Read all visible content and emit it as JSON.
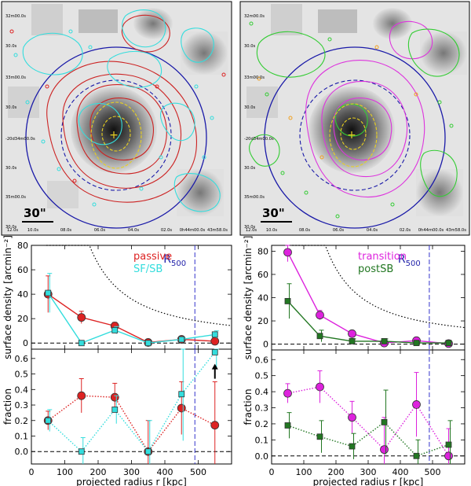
{
  "maps": {
    "left": {
      "dec_labels": [
        "32m00.0s",
        "30.0s",
        "33m00.0s",
        "30.0s",
        "-20d34m00.0s",
        "30.0s",
        "35m00.0s",
        "30.0s"
      ],
      "ra_labels": [
        "12.0s",
        "10.0s",
        "08.0s",
        "06.0s",
        "04.0s",
        "02.0s",
        "0h44m00.0s",
        "43m58.0s"
      ],
      "scalebar_label": "30\"",
      "contour_colors": {
        "passive": "#cc2222",
        "sf_sb": "#33dddd"
      }
    },
    "right": {
      "dec_labels": [
        "32m00.0s",
        "30.0s",
        "33m00.0s",
        "30.0s",
        "-20d34m00.0s",
        "30.0s",
        "35m00.0s",
        "30.0s"
      ],
      "ra_labels": [
        "12.0s",
        "10.0s",
        "08.0s",
        "06.0s",
        "04.0s",
        "02.0s",
        "0h44m00.0s",
        "43m58.0s"
      ],
      "scalebar_label": "30\"",
      "contour_colors": {
        "transition": "#dd33dd",
        "postSB": "#33cc33"
      }
    }
  },
  "chart_data": [
    {
      "type": "line",
      "panel": "left-top",
      "xlim": [
        0,
        600
      ],
      "ylim": [
        -5,
        80
      ],
      "yticks": [
        0,
        20,
        40,
        60,
        80
      ],
      "ylabel": "surface density [arcmin⁻²]",
      "r500_label": "R500",
      "r500_x": 490,
      "series": [
        {
          "name": "passive",
          "color": "#dd2222",
          "marker": "circle",
          "style": "solid",
          "x": [
            50,
            150,
            250,
            350,
            450,
            550
          ],
          "y": [
            40,
            21,
            14,
            0.5,
            3,
            1.5
          ],
          "err": [
            15,
            5,
            3,
            1,
            1.5,
            1.5
          ]
        },
        {
          "name": "SF/SB",
          "color": "#33dddd",
          "marker": "square",
          "style": "solid",
          "x": [
            50,
            150,
            250,
            350,
            450,
            550
          ],
          "y": [
            41,
            0,
            10.5,
            0,
            3,
            7
          ],
          "err": [
            16,
            1,
            3,
            1,
            1.5,
            3
          ]
        }
      ],
      "reference_curve": "dotted black profile"
    },
    {
      "type": "line",
      "panel": "left-bottom",
      "xlim": [
        0,
        600
      ],
      "ylim": [
        -0.08,
        0.66
      ],
      "yticks": [
        0.0,
        0.1,
        0.2,
        0.3,
        0.4,
        0.5,
        0.6
      ],
      "ylabel": "fraction",
      "xlabel": "projected radius r [kpc]",
      "xticks": [
        0,
        100,
        200,
        300,
        400,
        500
      ],
      "r500_x": 490,
      "series": [
        {
          "name": "passive",
          "color": "#dd2222",
          "marker": "circle",
          "style": "dotted",
          "x": [
            50,
            150,
            250,
            350,
            450,
            550
          ],
          "y": [
            0.2,
            0.36,
            0.35,
            0.0,
            0.28,
            0.17
          ],
          "err": [
            0.06,
            0.11,
            0.09,
            0.2,
            0.17,
            0.28
          ]
        },
        {
          "name": "SF/SB",
          "color": "#33dddd",
          "marker": "square",
          "style": "dotted",
          "x": [
            50,
            150,
            250,
            350,
            450,
            550
          ],
          "y": [
            0.2,
            0.0,
            0.27,
            0.0,
            0.37,
            0.64
          ],
          "err": [
            0.07,
            0.09,
            0.09,
            0.2,
            0.3,
            0.1
          ]
        }
      ],
      "annotation": "lower-limit arrow at r = 550 kpc"
    },
    {
      "type": "line",
      "panel": "right-top",
      "xlim": [
        0,
        600
      ],
      "ylim": [
        -5,
        85
      ],
      "yticks": [
        0,
        20,
        40,
        60,
        80
      ],
      "ylabel": "surface density [arcmin⁻²]",
      "r500_label": "R500",
      "r500_x": 490,
      "series": [
        {
          "name": "transition",
          "color": "#dd22dd",
          "marker": "circle",
          "style": "solid",
          "x": [
            50,
            150,
            250,
            350,
            450,
            550
          ],
          "y": [
            79,
            25,
            9,
            1,
            3,
            0.5
          ],
          "err": [
            8,
            4,
            2.5,
            1,
            1.5,
            1
          ]
        },
        {
          "name": "postSB",
          "color": "#227722",
          "marker": "square",
          "style": "solid",
          "x": [
            50,
            150,
            250,
            350,
            450,
            550
          ],
          "y": [
            37,
            7,
            2.5,
            2.5,
            1,
            1
          ],
          "err": [
            15,
            5,
            2,
            2,
            1,
            1
          ]
        }
      ],
      "reference_curve": "dotted black profile"
    },
    {
      "type": "line",
      "panel": "right-bottom",
      "xlim": [
        0,
        600
      ],
      "ylim": [
        -0.05,
        0.66
      ],
      "yticks": [
        0.0,
        0.1,
        0.2,
        0.3,
        0.4,
        0.5,
        0.6
      ],
      "ylabel": "fraction",
      "xlabel": "projected radius r [kpc]",
      "xticks": [
        0,
        100,
        200,
        300,
        400,
        500
      ],
      "r500_x": 490,
      "series": [
        {
          "name": "transition",
          "color": "#dd22dd",
          "marker": "circle",
          "style": "dotted",
          "x": [
            50,
            150,
            250,
            350,
            450,
            550
          ],
          "y": [
            0.39,
            0.43,
            0.24,
            0.04,
            0.32,
            0.0
          ],
          "err": [
            0.06,
            0.1,
            0.1,
            0.2,
            0.2,
            0.17
          ]
        },
        {
          "name": "postSB",
          "color": "#227722",
          "marker": "square",
          "style": "dotted",
          "x": [
            50,
            150,
            250,
            350,
            450,
            550
          ],
          "y": [
            0.19,
            0.12,
            0.06,
            0.21,
            0.0,
            0.07
          ],
          "err": [
            0.08,
            0.1,
            0.08,
            0.2,
            0.1,
            0.15
          ]
        }
      ]
    }
  ]
}
